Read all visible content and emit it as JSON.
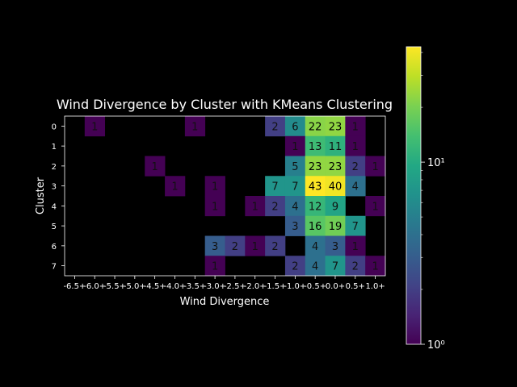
{
  "chart_data": {
    "type": "heatmap",
    "title": "Wind Divergence by Cluster with KMeans Clustering",
    "xlabel": "Wind Divergence",
    "ylabel": "Cluster",
    "x_categories": [
      "-6.5+",
      "-6.0+",
      "-5.5+",
      "-5.0+",
      "-4.5+",
      "-4.0+",
      "-3.5+",
      "-3.0+",
      "-2.5+",
      "-2.0+",
      "-1.5+",
      "-1.0+",
      "-0.5+",
      "0.0+",
      "0.5+",
      "1.0+"
    ],
    "y_categories": [
      "0",
      "1",
      "2",
      "3",
      "4",
      "5",
      "6",
      "7"
    ],
    "values": [
      [
        null,
        1,
        null,
        null,
        null,
        null,
        1,
        null,
        null,
        null,
        2,
        6,
        22,
        23,
        1,
        null
      ],
      [
        null,
        null,
        null,
        null,
        null,
        null,
        null,
        null,
        null,
        null,
        null,
        1,
        13,
        11,
        1,
        null
      ],
      [
        null,
        null,
        null,
        null,
        1,
        null,
        null,
        null,
        null,
        null,
        null,
        5,
        23,
        23,
        2,
        1
      ],
      [
        null,
        null,
        null,
        null,
        null,
        1,
        null,
        1,
        null,
        null,
        7,
        7,
        43,
        40,
        4,
        null
      ],
      [
        null,
        null,
        null,
        null,
        null,
        null,
        null,
        1,
        null,
        1,
        2,
        4,
        12,
        9,
        null,
        1
      ],
      [
        null,
        null,
        null,
        null,
        null,
        null,
        null,
        null,
        null,
        null,
        null,
        3,
        16,
        19,
        7,
        null
      ],
      [
        null,
        null,
        null,
        null,
        null,
        null,
        null,
        3,
        2,
        1,
        2,
        null,
        4,
        3,
        1,
        null
      ],
      [
        null,
        null,
        null,
        null,
        null,
        null,
        null,
        1,
        null,
        null,
        null,
        2,
        4,
        7,
        2,
        1
      ]
    ],
    "colorbar": {
      "scale": "log",
      "range": [
        1,
        43
      ],
      "colormap": "viridis",
      "tick_labels": [
        "10⁰",
        "10¹"
      ]
    },
    "grid": false
  }
}
